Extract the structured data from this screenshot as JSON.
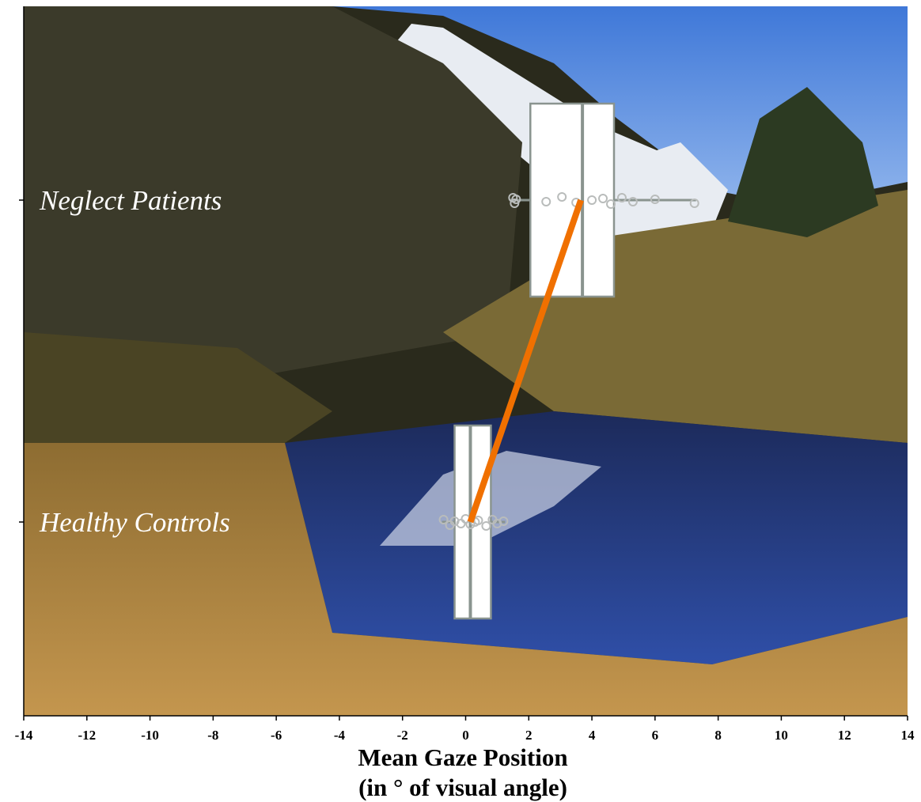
{
  "chart_data": {
    "type": "box",
    "xlabel": "Mean Gaze Position",
    "xlabel_sub": "(in ° of visual angle)",
    "xlim": [
      -14,
      14
    ],
    "xticks": [
      -14,
      -12,
      -10,
      -8,
      -6,
      -4,
      -2,
      0,
      2,
      4,
      6,
      8,
      10,
      12,
      14
    ],
    "mean_line_color": "#f07000",
    "box_color": "#ffffff",
    "edge_color": "#8a948f",
    "groups": [
      {
        "name": "Neglect Patients",
        "whisker_low": 1.4,
        "q1": 2.05,
        "median": 3.7,
        "q3": 4.7,
        "whisker_high": 7.3,
        "mean": 3.65,
        "points": [
          1.5,
          1.55,
          1.6,
          2.55,
          3.05,
          3.5,
          4.0,
          4.35,
          4.6,
          4.95,
          5.3,
          6.0,
          7.25
        ]
      },
      {
        "name": "Healthy Controls",
        "whisker_low": -0.75,
        "q1": -0.35,
        "median": 0.15,
        "q3": 0.8,
        "whisker_high": 1.25,
        "mean": 0.15,
        "points": [
          -0.7,
          -0.5,
          -0.35,
          -0.15,
          0.0,
          0.15,
          0.3,
          0.4,
          0.65,
          0.85,
          1.0,
          1.2
        ]
      }
    ]
  }
}
